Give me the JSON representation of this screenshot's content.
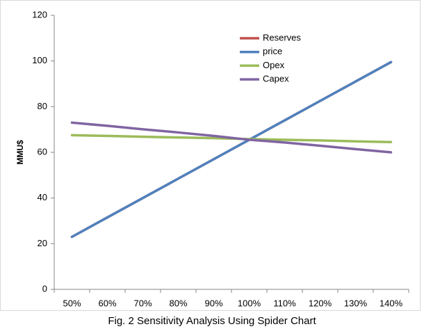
{
  "chart_data": {
    "type": "line",
    "y_label": "MMU$",
    "caption": "Fig. 2 Sensitivity Analysis Using Spider Chart",
    "categories": [
      "50%",
      "60%",
      "70%",
      "80%",
      "90%",
      "100%",
      "110%",
      "120%",
      "130%",
      "140%"
    ],
    "series": [
      {
        "name": "Reserves",
        "color": "#c0504d",
        "values": [
          23,
          31.5,
          40,
          48.5,
          57,
          65.5,
          74,
          82.5,
          91,
          99.5
        ]
      },
      {
        "name": "price",
        "color": "#4f81bd",
        "values": [
          23,
          31.5,
          40,
          48.5,
          57,
          65.5,
          74,
          82.5,
          91,
          99.5
        ]
      },
      {
        "name": "Opex",
        "color": "#9bbb59",
        "values": [
          67.5,
          67.2,
          66.8,
          66.5,
          66.2,
          65.8,
          65.5,
          65.2,
          64.8,
          64.5
        ]
      },
      {
        "name": "Capex",
        "color": "#8064a2",
        "values": [
          73,
          71.6,
          70.1,
          68.7,
          67.2,
          65.5,
          64.3,
          62.9,
          61.4,
          60
        ]
      }
    ],
    "ylim": [
      0,
      120
    ],
    "yticks": [
      0,
      20,
      40,
      60,
      80,
      100,
      120
    ],
    "grid": false,
    "legend": "top-right"
  }
}
